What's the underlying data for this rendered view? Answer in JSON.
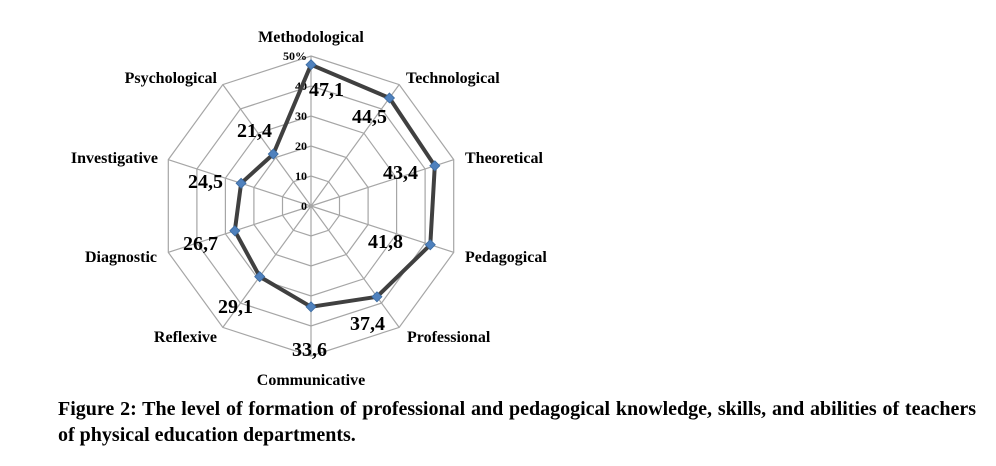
{
  "chart_data": {
    "type": "radar",
    "categories": [
      "Methodological",
      "Technological",
      "Theoretical",
      "Pedagogical",
      "Professional",
      "Communicative",
      "Reflexive",
      "Diagnostic",
      "Investigative",
      "Psychological"
    ],
    "values": [
      47.1,
      44.5,
      43.4,
      41.8,
      37.4,
      33.6,
      29.1,
      26.7,
      24.5,
      21.4
    ],
    "value_labels": [
      "47,1",
      "44,5",
      "43,4",
      "41,8",
      "37,4",
      "33,6",
      "29,1",
      "26,7",
      "24,5",
      "21,4"
    ],
    "tick_labels": [
      "0",
      "10",
      "20",
      "30",
      "40",
      "50%"
    ],
    "rmax": 50,
    "grid": true,
    "series_color": "#404040",
    "marker_color": "#4f81bd",
    "grid_color": "#a6a6a6"
  },
  "caption": "Figure 2: The level of formation of professional and pedagogical knowledge, skills, and abilities of teachers of physical education departments."
}
